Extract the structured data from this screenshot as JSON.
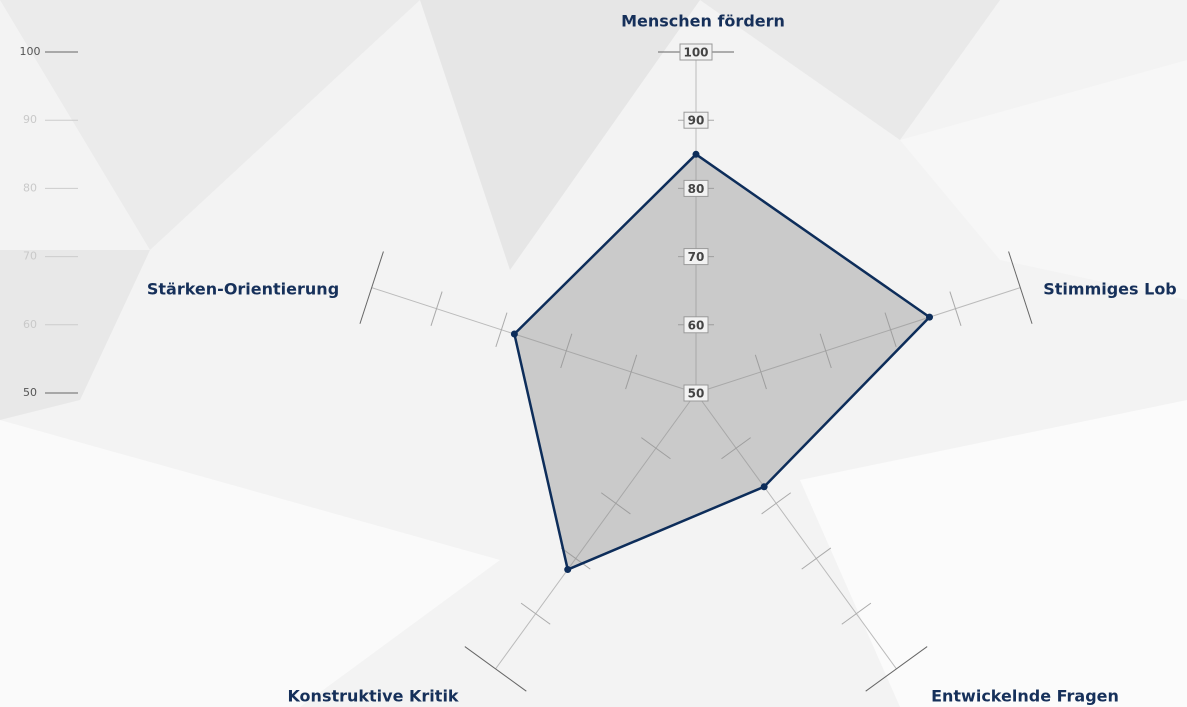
{
  "chart_data": {
    "type": "radar",
    "categories": [
      "Menschen fördern",
      "Stimmiges Lob",
      "Entwickelnde Fragen",
      "Konstruktive Kritik",
      "Stärken-Orientierung"
    ],
    "series": [
      {
        "color": "#0d2d5a",
        "values": [
          85,
          86,
          67,
          82,
          78
        ]
      }
    ],
    "rlim": [
      50,
      100
    ],
    "rticks": [
      50,
      60,
      70,
      80,
      90,
      100
    ]
  }
}
